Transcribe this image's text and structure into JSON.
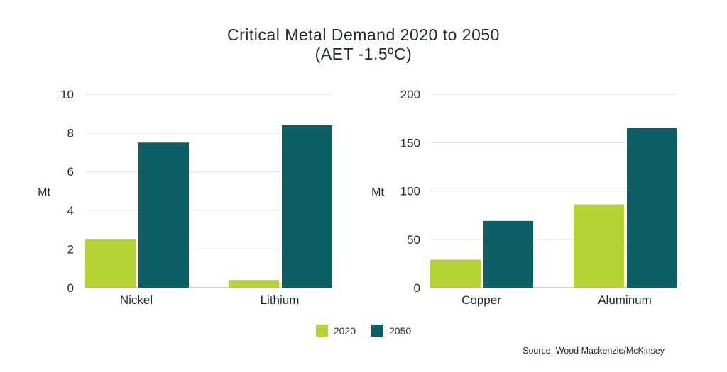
{
  "title_line1": "Critical Metal Demand 2020 to 2050",
  "title_line2": "(AET -1.5ºC)",
  "source": "Source: Wood Mackenzie/McKinsey",
  "colors": {
    "2020": "#b5d334",
    "2050": "#0b5f65"
  },
  "legend": [
    "2020",
    "2050"
  ],
  "chart_data": [
    {
      "type": "bar",
      "categories": [
        "Nickel",
        "Lithium"
      ],
      "series": [
        {
          "name": "2020",
          "values": [
            2.5,
            0.4
          ]
        },
        {
          "name": "2050",
          "values": [
            7.5,
            8.4
          ]
        }
      ],
      "ylabel": "Mt",
      "ylim": [
        0,
        10
      ],
      "yticks": [
        0,
        2,
        4,
        6,
        8,
        10
      ],
      "grid": true
    },
    {
      "type": "bar",
      "categories": [
        "Copper",
        "Aluminum"
      ],
      "series": [
        {
          "name": "2020",
          "values": [
            29,
            86
          ]
        },
        {
          "name": "2050",
          "values": [
            69,
            165
          ]
        }
      ],
      "ylabel": "Mt",
      "ylim": [
        0,
        200
      ],
      "yticks": [
        0,
        50,
        100,
        150,
        200
      ],
      "grid": true
    }
  ]
}
